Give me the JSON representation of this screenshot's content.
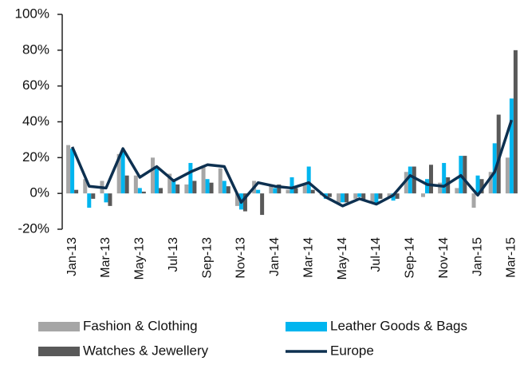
{
  "chart_data": {
    "type": "bar",
    "categories": [
      "Jan-13",
      null,
      "Mar-13",
      null,
      "May-13",
      null,
      "Jul-13",
      null,
      "Sep-13",
      null,
      "Nov-13",
      null,
      "Jan-14",
      null,
      "Mar-14",
      null,
      "May-14",
      null,
      "Jul-14",
      null,
      "Sep-14",
      null,
      "Nov-14",
      null,
      "Jan-15",
      null,
      "Mar-15"
    ],
    "series": [
      {
        "name": "Fashion & Clothing",
        "color": "#a6a6a6",
        "values": [
          27,
          8,
          7,
          22,
          10,
          20,
          11,
          5,
          15,
          14,
          -7,
          7,
          5,
          2,
          5,
          -1,
          -6,
          -3,
          -5,
          -2,
          12,
          -2,
          6,
          3,
          -8,
          12,
          20
        ]
      },
      {
        "name": "Leather Goods & Bags",
        "color": "#00b5ef",
        "values": [
          25,
          -8,
          -5,
          24,
          3,
          14,
          8,
          17,
          8,
          7,
          -9,
          2,
          3,
          9,
          15,
          -3,
          -5,
          -2,
          -6,
          -4,
          15,
          8,
          17,
          21,
          10,
          28,
          53
        ]
      },
      {
        "name": "Watches & Jewellery",
        "color": "#595959",
        "values": [
          2,
          -3,
          -7,
          10,
          1,
          3,
          5,
          7,
          6,
          4,
          -10,
          -12,
          5,
          3,
          2,
          -2,
          -5,
          -4,
          -3,
          -3,
          15,
          16,
          9,
          21,
          8,
          44,
          80
        ]
      },
      {
        "name": "Europe",
        "color": "#0d3050",
        "type": "line",
        "values": [
          26,
          4,
          3,
          25,
          9,
          15,
          7,
          12,
          16,
          15,
          -5,
          6,
          4,
          3,
          6,
          -2,
          -7,
          -3,
          -6,
          -1,
          10,
          5,
          4,
          10,
          -1,
          12,
          41
        ]
      }
    ],
    "ylim": [
      -20,
      100
    ],
    "yticks": [
      {
        "value": -20,
        "label": "-20%"
      },
      {
        "value": 0,
        "label": "0%"
      },
      {
        "value": 20,
        "label": "20%"
      },
      {
        "value": 40,
        "label": "40%"
      },
      {
        "value": 60,
        "label": "60%"
      },
      {
        "value": 80,
        "label": "80%"
      },
      {
        "value": 100,
        "label": "100%"
      }
    ],
    "legend": "bottom"
  }
}
